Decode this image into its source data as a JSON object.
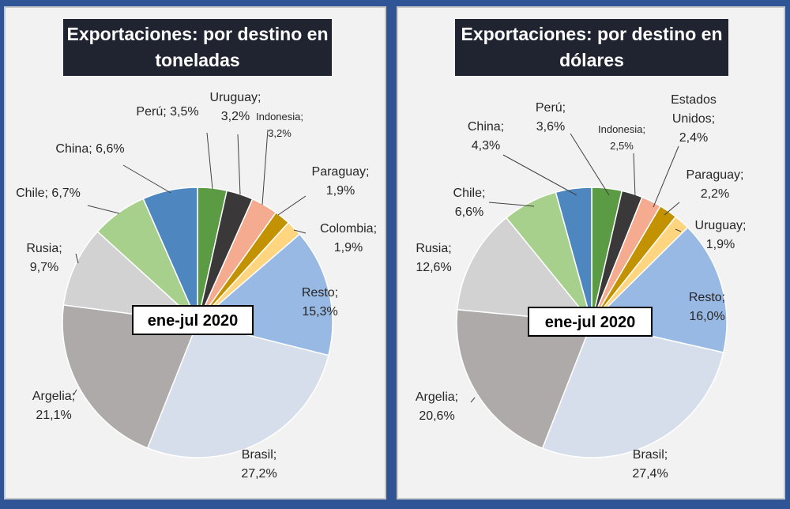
{
  "chart_data": [
    {
      "type": "pie",
      "title_lines": [
        "Exportaciones: por destino en",
        "toneladas"
      ],
      "period": "ene-jul 2020",
      "slices": [
        {
          "label": "Perú; 3,5%",
          "value": 3.5,
          "color": "#5b9b44"
        },
        {
          "label": "Uruguay; 3,2%",
          "value": 3.2,
          "color": "#3a3838"
        },
        {
          "label": "Indonesia; 3,2%",
          "value": 3.2,
          "color": "#f4ab8f"
        },
        {
          "label": "Paraguay; 1,9%",
          "value": 1.9,
          "color": "#c39200"
        },
        {
          "label": "Colombia; 1,9%",
          "value": 1.9,
          "color": "#ffd580"
        },
        {
          "label": "Resto; 15,3%",
          "value": 15.3,
          "color": "#98b9e3"
        },
        {
          "label": "Brasil; 27,2%",
          "value": 27.2,
          "color": "#d6deeb"
        },
        {
          "label": "Argelia; 21,1%",
          "value": 21.1,
          "color": "#aeaaaa"
        },
        {
          "label": "Rusia; 9,7%",
          "value": 9.7,
          "color": "#d2d2d2"
        },
        {
          "label": "Chile; 6,7%",
          "value": 6.7,
          "color": "#a8d08d"
        },
        {
          "label": "China; 6,6%",
          "value": 6.6,
          "color": "#4e87c0"
        }
      ]
    },
    {
      "type": "pie",
      "title_lines": [
        "Exportaciones: por destino en",
        "dólares"
      ],
      "period": "ene-jul 2020",
      "slices": [
        {
          "label": "Perú; 3,6%",
          "value": 3.6,
          "color": "#5b9b44"
        },
        {
          "label": "Indonesia; 2,5%",
          "value": 2.5,
          "color": "#3a3838"
        },
        {
          "label": "Estados Unidos; 2,4%",
          "value": 2.4,
          "color": "#f4ab8f"
        },
        {
          "label": "Paraguay; 2,2%",
          "value": 2.2,
          "color": "#c39200"
        },
        {
          "label": "Uruguay; 1,9%",
          "value": 1.9,
          "color": "#ffd580"
        },
        {
          "label": "Resto; 16,0%",
          "value": 16.0,
          "color": "#98b9e3"
        },
        {
          "label": "Brasil; 27,4%",
          "value": 27.4,
          "color": "#d6deeb"
        },
        {
          "label": "Argelia; 20,6%",
          "value": 20.6,
          "color": "#aeaaaa"
        },
        {
          "label": "Rusia; 12,6%",
          "value": 12.6,
          "color": "#d2d2d2"
        },
        {
          "label": "Chile; 6,6%",
          "value": 6.6,
          "color": "#a8d08d"
        },
        {
          "label": "China; 4,3%",
          "value": 4.3,
          "color": "#4e87c0"
        }
      ]
    }
  ],
  "charts": {
    "left": {
      "title_line1": "Exportaciones: por destino en",
      "title_line2": "toneladas",
      "period": "ene-jul 2020",
      "labels": [
        [
          "Perú; 3,5%"
        ],
        [
          "Uruguay;",
          "3,2%"
        ],
        [
          "Indonesia;",
          "3,2%"
        ],
        [
          "Paraguay;",
          "1,9%"
        ],
        [
          "Colombia;",
          "1,9%"
        ],
        [
          "Resto;",
          "15,3%"
        ],
        [
          "Brasil;",
          "27,2%"
        ],
        [
          "Argelia;",
          "21,1%"
        ],
        [
          "Rusia;",
          "9,7%"
        ],
        [
          "Chile; 6,7%"
        ],
        [
          "China; 6,6%"
        ]
      ]
    },
    "right": {
      "title_line1": "Exportaciones: por destino en",
      "title_line2": "dólares",
      "period": "ene-jul 2020",
      "labels": [
        [
          "Perú;",
          "3,6%"
        ],
        [
          "Indonesia;",
          "2,5%"
        ],
        [
          "Estados",
          "Unidos;",
          "2,4%"
        ],
        [
          "Paraguay;",
          "2,2%"
        ],
        [
          "Uruguay;",
          "1,9%"
        ],
        [
          "Resto;",
          "16,0%"
        ],
        [
          "Brasil;",
          "27,4%"
        ],
        [
          "Argelia;",
          "20,6%"
        ],
        [
          "Rusia;",
          "12,6%"
        ],
        [
          "Chile;",
          "6,6%"
        ],
        [
          "China;",
          "4,3%"
        ]
      ]
    }
  }
}
